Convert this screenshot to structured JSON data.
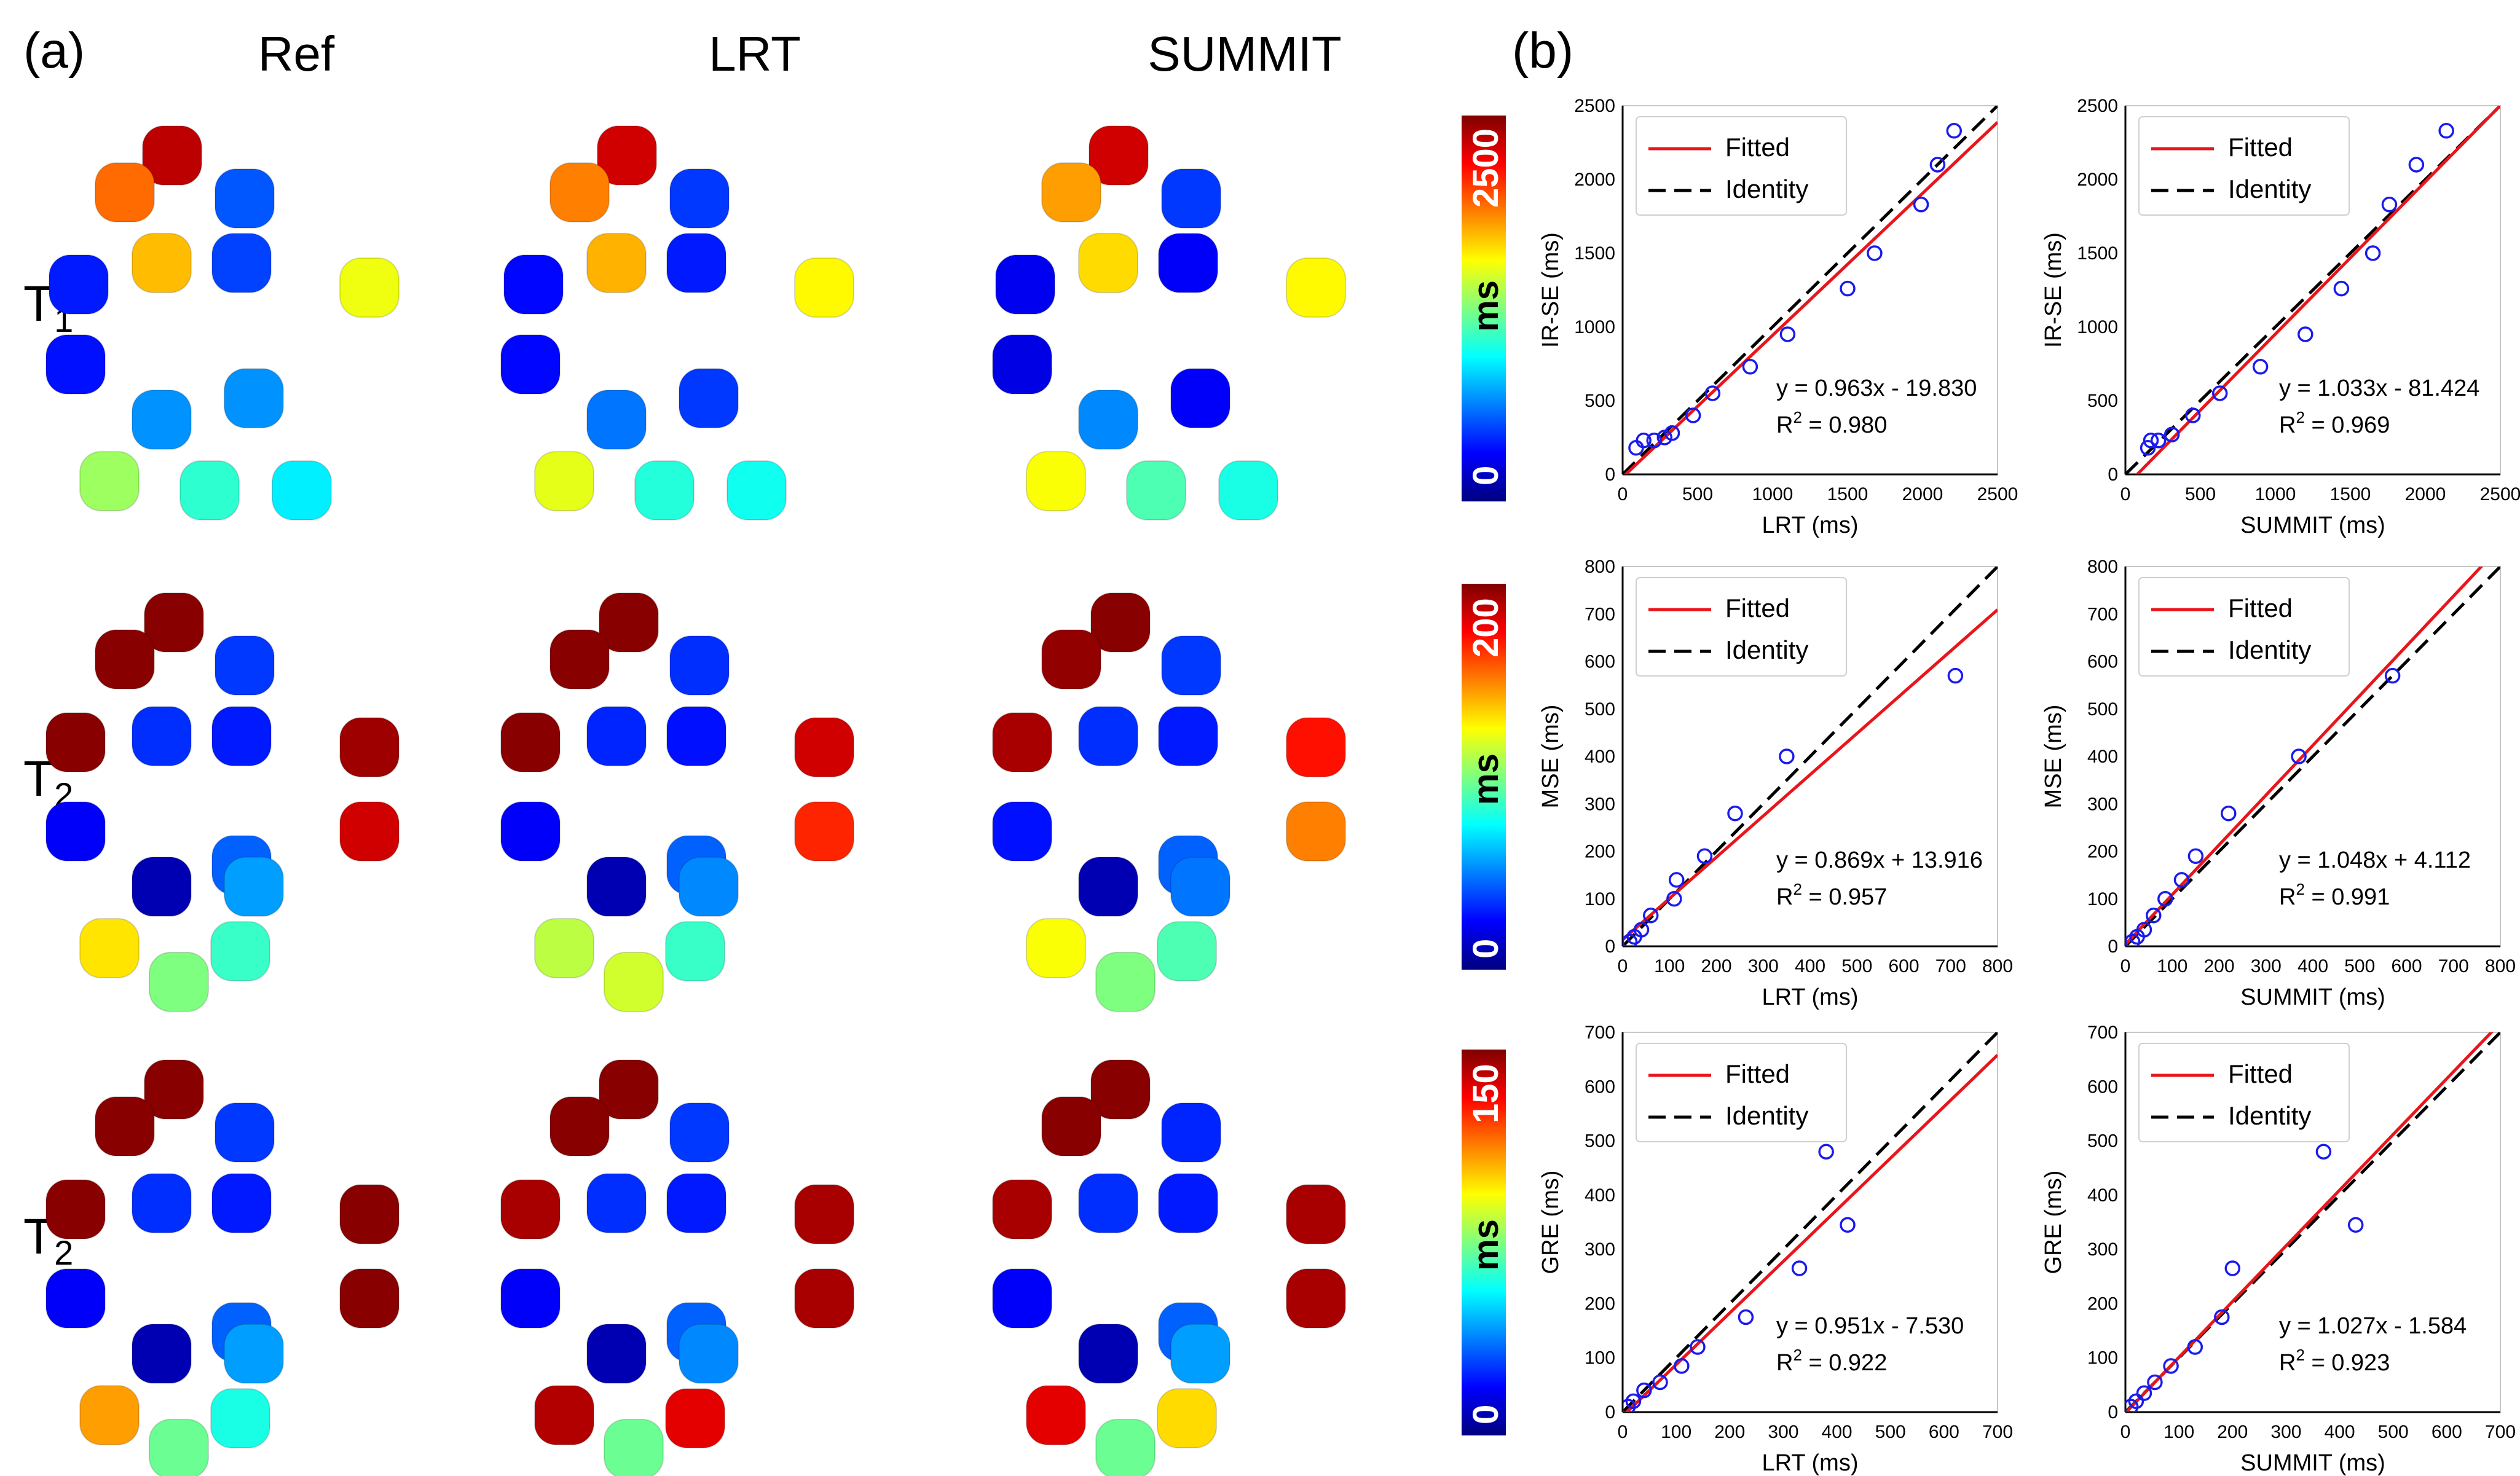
{
  "panel_labels": {
    "a": "(a)",
    "b": "(b)"
  },
  "columns": [
    "Ref",
    "LRT",
    "SUMMIT"
  ],
  "rows": [
    {
      "label_main": "T",
      "label_sub": "1",
      "label_suffix": "",
      "colorbar": {
        "min_label": "0",
        "max_label": "2500",
        "unit": "ms"
      }
    },
    {
      "label_main": "T",
      "label_sub": "2",
      "label_suffix": "",
      "colorbar": {
        "min_label": "0",
        "max_label": "200",
        "unit": "ms"
      }
    },
    {
      "label_main": "T",
      "label_sub": "2",
      "label_suffix": "*",
      "colorbar": {
        "min_label": "0",
        "max_label": "150",
        "unit": "ms"
      }
    }
  ],
  "colors": {
    "fitted": "#e8161b",
    "identity": "#000000",
    "points": "#1a1aee",
    "jet": [
      "#00007f",
      "#0000ff",
      "#007fff",
      "#00ffff",
      "#7fff7f",
      "#ffff00",
      "#ff7f00",
      "#ff0000",
      "#7f0000"
    ]
  },
  "phantom_maps": {
    "T1": {
      "Ref": [
        0.94,
        0.77,
        0.21,
        0.69,
        0.19,
        0.15,
        0.61,
        0.14,
        0.27,
        0.27,
        0.53,
        0.42,
        0.36
      ],
      "LRT": [
        0.92,
        0.75,
        0.18,
        0.7,
        0.15,
        0.13,
        0.63,
        0.13,
        0.24,
        0.18,
        0.6,
        0.41,
        0.39
      ],
      "SUMMIT": [
        0.92,
        0.72,
        0.18,
        0.66,
        0.12,
        0.11,
        0.63,
        0.1,
        0.26,
        0.12,
        0.62,
        0.45,
        0.4
      ]
    },
    "T2": {
      "Ref": [
        0.99,
        0.99,
        0.18,
        0.99,
        0.17,
        0.15,
        0.97,
        0.12,
        0.22,
        0.92,
        0.05,
        0.05,
        0.28,
        0.65,
        0.43,
        0.5
      ],
      "LRT": [
        0.99,
        0.99,
        0.17,
        0.99,
        0.16,
        0.14,
        0.92,
        0.12,
        0.22,
        0.84,
        0.05,
        0.05,
        0.26,
        0.56,
        0.43,
        0.58
      ],
      "SUMMIT": [
        0.99,
        0.98,
        0.18,
        0.96,
        0.17,
        0.15,
        0.86,
        0.14,
        0.22,
        0.75,
        0.05,
        0.05,
        0.24,
        0.62,
        0.45,
        0.5
      ]
    },
    "T2s": {
      "Ref": [
        0.99,
        0.99,
        0.18,
        0.99,
        0.17,
        0.15,
        0.99,
        0.12,
        0.22,
        0.99,
        0.05,
        0.05,
        0.28,
        0.72,
        0.4,
        0.48
      ],
      "LRT": [
        0.99,
        0.99,
        0.18,
        0.96,
        0.17,
        0.15,
        0.96,
        0.12,
        0.22,
        0.96,
        0.05,
        0.05,
        0.26,
        0.95,
        0.9,
        0.48
      ],
      "SUMMIT": [
        0.99,
        0.99,
        0.16,
        0.96,
        0.17,
        0.15,
        0.96,
        0.12,
        0.22,
        0.96,
        0.05,
        0.05,
        0.28,
        0.9,
        0.66,
        0.48
      ]
    }
  },
  "chart_data": [
    {
      "type": "scatter",
      "xlabel": "LRT (ms)",
      "ylabel": "IR-SE (ms)",
      "xlim": [
        0,
        2500
      ],
      "ylim": [
        0,
        2500
      ],
      "xticks": [
        0,
        500,
        1000,
        1500,
        2000,
        2500
      ],
      "yticks": [
        0,
        500,
        1000,
        1500,
        2000,
        2500
      ],
      "points": [
        [
          90,
          180
        ],
        [
          140,
          230
        ],
        [
          210,
          230
        ],
        [
          280,
          250
        ],
        [
          330,
          280
        ],
        [
          470,
          400
        ],
        [
          600,
          550
        ],
        [
          850,
          730
        ],
        [
          1100,
          950
        ],
        [
          1500,
          1260
        ],
        [
          1680,
          1500
        ],
        [
          1990,
          1830
        ],
        [
          2100,
          2100
        ],
        [
          2210,
          2330
        ]
      ],
      "fit": {
        "slope": 0.963,
        "intercept": -19.83
      },
      "equation": "y = 0.963x - 19.830",
      "r2": "0.980",
      "legend": {
        "fitted": "Fitted",
        "identity": "Identity"
      },
      "grid": false,
      "legend_position": "top-left"
    },
    {
      "type": "scatter",
      "xlabel": "SUMMIT (ms)",
      "ylabel": "IR-SE (ms)",
      "xlim": [
        0,
        2500
      ],
      "ylim": [
        0,
        2500
      ],
      "xticks": [
        0,
        500,
        1000,
        1500,
        2000,
        2500
      ],
      "yticks": [
        0,
        500,
        1000,
        1500,
        2000,
        2500
      ],
      "points": [
        [
          150,
          180
        ],
        [
          170,
          230
        ],
        [
          220,
          230
        ],
        [
          310,
          270
        ],
        [
          450,
          400
        ],
        [
          630,
          550
        ],
        [
          900,
          730
        ],
        [
          1200,
          950
        ],
        [
          1440,
          1260
        ],
        [
          1650,
          1500
        ],
        [
          1760,
          1830
        ],
        [
          1940,
          2100
        ],
        [
          2140,
          2330
        ]
      ],
      "fit": {
        "slope": 1.033,
        "intercept": -81.424
      },
      "equation": "y = 1.033x - 81.424",
      "r2": "0.969",
      "legend": {
        "fitted": "Fitted",
        "identity": "Identity"
      },
      "grid": false,
      "legend_position": "top-left"
    },
    {
      "type": "scatter",
      "xlabel": "LRT (ms)",
      "ylabel": "MSE (ms)",
      "xlim": [
        0,
        800
      ],
      "ylim": [
        0,
        800
      ],
      "xticks": [
        0,
        100,
        200,
        300,
        400,
        500,
        600,
        700,
        800
      ],
      "yticks": [
        0,
        100,
        200,
        300,
        400,
        500,
        600,
        700,
        800
      ],
      "points": [
        [
          15,
          10
        ],
        [
          25,
          20
        ],
        [
          40,
          35
        ],
        [
          60,
          65
        ],
        [
          110,
          100
        ],
        [
          115,
          140
        ],
        [
          175,
          190
        ],
        [
          240,
          280
        ],
        [
          350,
          400
        ],
        [
          710,
          570
        ]
      ],
      "fit": {
        "slope": 0.869,
        "intercept": 13.916
      },
      "equation": "y = 0.869x + 13.916",
      "r2": "0.957",
      "legend": {
        "fitted": "Fitted",
        "identity": "Identity"
      },
      "grid": false,
      "legend_position": "top-left"
    },
    {
      "type": "scatter",
      "xlabel": "SUMMIT (ms)",
      "ylabel": "MSE (ms)",
      "xlim": [
        0,
        800
      ],
      "ylim": [
        0,
        800
      ],
      "xticks": [
        0,
        100,
        200,
        300,
        400,
        500,
        600,
        700,
        800
      ],
      "yticks": [
        0,
        100,
        200,
        300,
        400,
        500,
        600,
        700,
        800
      ],
      "points": [
        [
          15,
          10
        ],
        [
          25,
          20
        ],
        [
          40,
          35
        ],
        [
          60,
          65
        ],
        [
          85,
          100
        ],
        [
          120,
          140
        ],
        [
          150,
          190
        ],
        [
          220,
          280
        ],
        [
          370,
          400
        ],
        [
          570,
          570
        ]
      ],
      "fit": {
        "slope": 1.048,
        "intercept": 4.112
      },
      "equation": "y = 1.048x + 4.112",
      "r2": "0.991",
      "legend": {
        "fitted": "Fitted",
        "identity": "Identity"
      },
      "grid": false,
      "legend_position": "top-left"
    },
    {
      "type": "scatter",
      "xlabel": "LRT (ms)",
      "ylabel": "GRE (ms)",
      "xlim": [
        0,
        700
      ],
      "ylim": [
        0,
        700
      ],
      "xticks": [
        0,
        100,
        200,
        300,
        400,
        500,
        600,
        700
      ],
      "yticks": [
        0,
        100,
        200,
        300,
        400,
        500,
        600,
        700
      ],
      "points": [
        [
          10,
          10
        ],
        [
          20,
          20
        ],
        [
          40,
          40
        ],
        [
          70,
          55
        ],
        [
          110,
          85
        ],
        [
          140,
          120
        ],
        [
          230,
          175
        ],
        [
          330,
          265
        ],
        [
          380,
          480
        ],
        [
          420,
          345
        ]
      ],
      "fit": {
        "slope": 0.951,
        "intercept": -7.53
      },
      "equation": "y = 0.951x - 7.530",
      "r2": "0.922",
      "legend": {
        "fitted": "Fitted",
        "identity": "Identity"
      },
      "grid": false,
      "legend_position": "top-left"
    },
    {
      "type": "scatter",
      "xlabel": "SUMMIT (ms)",
      "ylabel": "GRE (ms)",
      "xlim": [
        0,
        700
      ],
      "ylim": [
        0,
        700
      ],
      "xticks": [
        0,
        100,
        200,
        300,
        400,
        500,
        600,
        700
      ],
      "yticks": [
        0,
        100,
        200,
        300,
        400,
        500,
        600,
        700
      ],
      "points": [
        [
          10,
          10
        ],
        [
          20,
          20
        ],
        [
          35,
          35
        ],
        [
          55,
          55
        ],
        [
          85,
          85
        ],
        [
          130,
          120
        ],
        [
          180,
          175
        ],
        [
          200,
          265
        ],
        [
          370,
          480
        ],
        [
          430,
          345
        ]
      ],
      "fit": {
        "slope": 1.027,
        "intercept": -1.584
      },
      "equation": "y = 1.027x - 1.584",
      "r2": "0.923",
      "legend": {
        "fitted": "Fitted",
        "identity": "Identity"
      },
      "grid": false,
      "legend_position": "top-left"
    }
  ]
}
